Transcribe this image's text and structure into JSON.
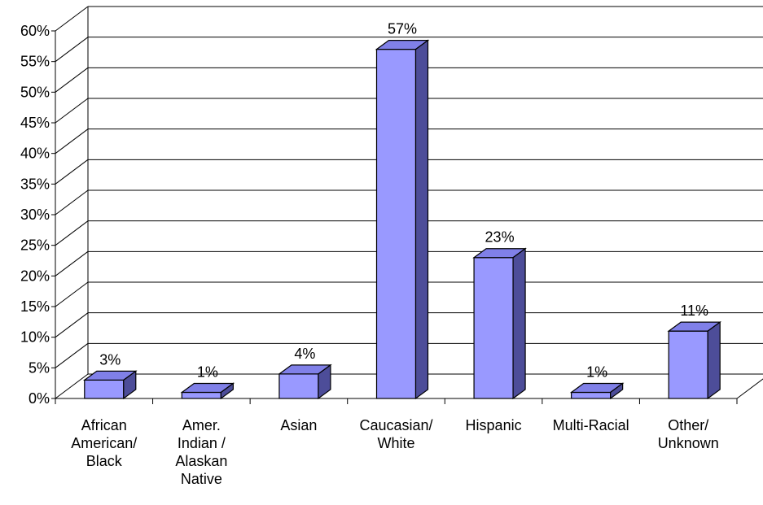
{
  "chart_data": {
    "type": "bar",
    "style": "3d-column",
    "categories": [
      [
        "African",
        "American/",
        "Black"
      ],
      [
        "Amer.",
        "Indian /",
        "Alaskan",
        "Native"
      ],
      [
        "Asian"
      ],
      [
        "Caucasian/",
        "White"
      ],
      [
        "Hispanic"
      ],
      [
        "Multi-Racial"
      ],
      [
        "Other/",
        "Unknown"
      ]
    ],
    "values": [
      3,
      1,
      4,
      57,
      23,
      1,
      11
    ],
    "data_labels": [
      "3%",
      "1%",
      "4%",
      "57%",
      "23%",
      "1%",
      "11%"
    ],
    "ylim": [
      0,
      60
    ],
    "yticks": [
      0,
      5,
      10,
      15,
      20,
      25,
      30,
      35,
      40,
      45,
      50,
      55,
      60
    ],
    "ytick_labels": [
      "0%",
      "5%",
      "10%",
      "15%",
      "20%",
      "25%",
      "30%",
      "35%",
      "40%",
      "45%",
      "50%",
      "55%",
      "60%"
    ],
    "title": "",
    "xlabel": "",
    "ylabel": "",
    "grid": true,
    "legend": "none",
    "colors": {
      "bar_front": "#9999ff",
      "bar_top": "#8080e8",
      "bar_side": "#4d4d99",
      "outline": "#000000",
      "gridline": "#000000",
      "background": "#ffffff"
    }
  }
}
